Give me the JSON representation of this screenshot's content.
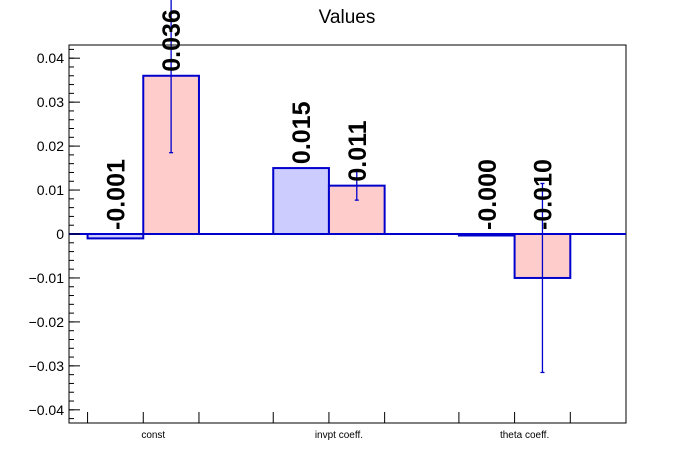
{
  "chart_data": {
    "type": "bar",
    "title": "Values",
    "xlabel": "",
    "ylabel": "",
    "ylim": [
      -0.043,
      0.043
    ],
    "y_ticks": [
      -0.04,
      -0.03,
      -0.02,
      -0.01,
      0,
      0.01,
      0.02,
      0.03,
      0.04
    ],
    "y_tick_labels": [
      "−0.04",
      "−0.03",
      "−0.02",
      "−0.01",
      "0",
      "0.01",
      "0.02",
      "0.03",
      "0.04"
    ],
    "categories": [
      "const",
      "invpt coeff.",
      "theta coeff."
    ],
    "series": [
      {
        "fill_color": "#ccccff",
        "edge_color": "#0000cc",
        "values": [
          -0.001,
          0.015,
          -0.0001
        ],
        "errors": [
          null,
          null,
          null
        ],
        "labels": [
          "-0.001",
          "0.015",
          "-0.000"
        ]
      },
      {
        "fill_color": "#ffcccc",
        "edge_color": "#0000cc",
        "values": [
          0.036,
          0.011,
          -0.01
        ],
        "errors": [
          0.0175,
          0.0033,
          0.0215
        ],
        "labels": [
          "0.036",
          "0.011",
          "-0.010"
        ]
      }
    ],
    "grid": false,
    "legend": "none"
  }
}
